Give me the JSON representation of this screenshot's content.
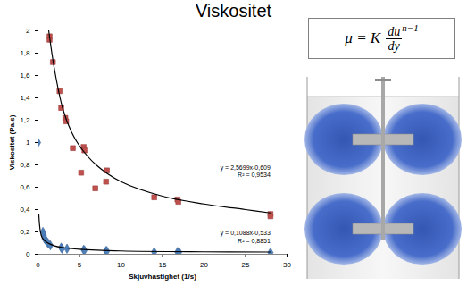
{
  "title": "Viskositet",
  "formula": {
    "lhs": "μ = K",
    "numerator": "du",
    "denominator": "dy",
    "exponent": "n−1"
  },
  "chart_data": {
    "type": "scatter",
    "x_label": "Skjuvhastighet (1/s)",
    "y_label": "Viskositet (Pa.s)",
    "xlim": [
      0,
      30
    ],
    "xticks": [
      0,
      5,
      10,
      15,
      20,
      25,
      30
    ],
    "ylim": [
      0,
      2
    ],
    "yticks": [
      0,
      {
        "value": 0.2,
        "label": "0,2"
      },
      {
        "value": 0.4,
        "label": "0,4"
      },
      {
        "value": 0.6,
        "label": "0,6"
      },
      {
        "value": 0.8,
        "label": "0,8"
      },
      {
        "value": 1,
        "label": "1"
      },
      {
        "value": 1.2,
        "label": "1,2"
      },
      {
        "value": 1.4,
        "label": "1,4"
      },
      {
        "value": 1.6,
        "label": "1,6"
      },
      {
        "value": 1.8,
        "label": "1,8"
      },
      2
    ],
    "grid": false,
    "series": [
      {
        "type": "scatter",
        "color": "#c0504d",
        "marker": "square",
        "x": [
          1.4,
          1.4,
          1.8,
          2.6,
          2.8,
          3.3,
          3.4,
          4.2,
          5.2,
          5.5,
          5.6,
          6.9,
          8.2,
          8.3,
          14,
          16.8,
          16.9,
          28,
          28
        ],
        "values": [
          1.95,
          1.92,
          1.72,
          1.46,
          1.31,
          1.22,
          1.19,
          0.95,
          0.73,
          0.96,
          0.93,
          0.59,
          0.65,
          0.75,
          0.51,
          0.49,
          0.47,
          0.36,
          0.34
        ]
      },
      {
        "type": "scatter",
        "color": "#4f81bd",
        "marker": "diamond",
        "x": [
          0,
          0.6,
          0.7,
          0.8,
          1,
          1.2,
          1.5,
          2.8,
          2.9,
          3.5,
          5.5,
          5.6,
          8.2,
          8.3,
          14,
          16.8,
          17,
          28
        ],
        "values": [
          1.0,
          0.2,
          0.17,
          0.14,
          0.12,
          0.1,
          0.08,
          0.06,
          0.05,
          0.05,
          0.04,
          0.035,
          0.03,
          0.028,
          0.02,
          0.02,
          0.02,
          0.015
        ]
      },
      {
        "type": "line",
        "color": "#000000",
        "line_style": "solid",
        "x": [
          1.3,
          2,
          3,
          4,
          5,
          7,
          10,
          15,
          20,
          25,
          28
        ],
        "values": [
          2.0,
          1.65,
          1.3,
          1.1,
          0.97,
          0.8,
          0.65,
          0.52,
          0.45,
          0.4,
          0.37
        ],
        "annotation": [
          "y = 2,5699x-0,609",
          "R² = 0,9534"
        ]
      },
      {
        "type": "line",
        "color": "#000000",
        "line_style": "solid",
        "x": [
          0.1,
          0.3,
          0.5,
          1,
          2,
          3,
          5,
          10,
          20,
          28
        ],
        "values": [
          0.36,
          0.2,
          0.15,
          0.11,
          0.075,
          0.06,
          0.045,
          0.03,
          0.022,
          0.02
        ],
        "annotation": [
          "y = 0,1088x-0,533",
          "R² = 0,8851"
        ]
      }
    ]
  }
}
